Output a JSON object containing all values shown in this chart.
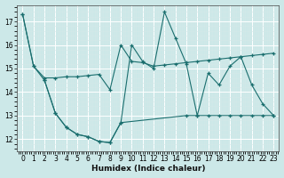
{
  "xlabel": "Humidex (Indice chaleur)",
  "bg_color": "#cce8e8",
  "line_color": "#1a6e6e",
  "grid_color": "#b8d8d8",
  "ylim": [
    11.5,
    17.7
  ],
  "xlim": [
    -0.5,
    23.5
  ],
  "yticks": [
    12,
    13,
    14,
    15,
    16,
    17
  ],
  "xticks": [
    0,
    1,
    2,
    3,
    4,
    5,
    6,
    7,
    8,
    9,
    10,
    11,
    12,
    13,
    14,
    15,
    16,
    17,
    18,
    19,
    20,
    21,
    22,
    23
  ],
  "line1_x": [
    0,
    1,
    2,
    3,
    4,
    5,
    6,
    7,
    8,
    9,
    10,
    11,
    12,
    13,
    14,
    15,
    16,
    17,
    18,
    19,
    20,
    21,
    22,
    23
  ],
  "line1_y": [
    17.3,
    15.1,
    14.6,
    14.6,
    14.65,
    14.65,
    14.7,
    14.75,
    14.1,
    16.0,
    15.3,
    15.25,
    15.1,
    15.15,
    15.2,
    15.25,
    15.3,
    15.35,
    15.4,
    15.45,
    15.5,
    15.55,
    15.6,
    15.65
  ],
  "line2_x": [
    0,
    1,
    2,
    3,
    4,
    5,
    6,
    7,
    8,
    9,
    10,
    11,
    12,
    13,
    14,
    15,
    16,
    17,
    18,
    19,
    20,
    21,
    22,
    23
  ],
  "line2_y": [
    17.3,
    15.1,
    14.5,
    13.1,
    12.5,
    12.2,
    12.1,
    11.9,
    11.85,
    12.7,
    16.0,
    15.3,
    15.0,
    17.4,
    16.3,
    15.2,
    13.0,
    14.8,
    14.3,
    15.1,
    15.5,
    14.3,
    13.5,
    13.0
  ],
  "line3_x": [
    2,
    3,
    4,
    5,
    6,
    7,
    8,
    9,
    15,
    16,
    17,
    18,
    19,
    20,
    21,
    22,
    23
  ],
  "line3_y": [
    14.5,
    13.1,
    12.5,
    12.2,
    12.1,
    11.9,
    11.85,
    12.7,
    13.0,
    13.0,
    13.0,
    13.0,
    13.0,
    13.0,
    13.0,
    13.0,
    13.0
  ]
}
